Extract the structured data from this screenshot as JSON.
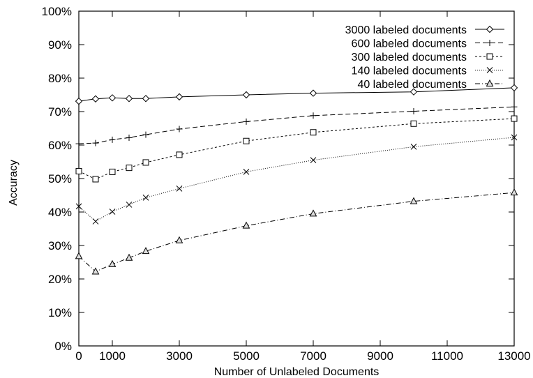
{
  "chart_data": {
    "type": "line",
    "title": "",
    "xlabel": "Number of Unlabeled Documents",
    "ylabel": "Accuracy",
    "xlim": [
      0,
      13000
    ],
    "ylim": [
      0,
      100
    ],
    "x_ticks": [
      0,
      1000,
      3000,
      5000,
      7000,
      9000,
      11000,
      13000
    ],
    "x_tick_labels": [
      "0",
      "1000",
      "3000",
      "5000",
      "7000",
      "9000",
      "11000",
      "13000"
    ],
    "y_ticks": [
      0,
      10,
      20,
      30,
      40,
      50,
      60,
      70,
      80,
      90,
      100
    ],
    "y_tick_labels": [
      "0%",
      "10%",
      "20%",
      "30%",
      "40%",
      "50%",
      "60%",
      "70%",
      "80%",
      "90%",
      "100%"
    ],
    "grid": false,
    "legend_position": "top-right",
    "series": [
      {
        "name": "3000 labeled documents",
        "marker": "diamond",
        "dash": "solid",
        "x": [
          0,
          500,
          1000,
          1500,
          2000,
          3000,
          5000,
          7000,
          10000,
          13000
        ],
        "y": [
          73.1,
          73.8,
          74.1,
          73.9,
          73.9,
          74.4,
          75.0,
          75.5,
          75.9,
          77.1
        ]
      },
      {
        "name": "600 labeled documents",
        "marker": "plus",
        "dash": "dashed",
        "x": [
          0,
          500,
          1000,
          1500,
          2000,
          3000,
          5000,
          7000,
          10000,
          13000
        ],
        "y": [
          60.4,
          60.6,
          61.6,
          62.2,
          63.1,
          64.8,
          67.0,
          68.8,
          70.1,
          71.4
        ]
      },
      {
        "name": "300 labeled documents",
        "marker": "square",
        "dash": "short-dash",
        "x": [
          0,
          500,
          1000,
          1500,
          2000,
          3000,
          5000,
          7000,
          10000,
          13000
        ],
        "y": [
          52.2,
          49.8,
          52.0,
          53.2,
          54.8,
          57.1,
          61.2,
          63.8,
          66.4,
          67.9
        ]
      },
      {
        "name": "140 labeled documents",
        "marker": "cross",
        "dash": "dotted",
        "x": [
          0,
          500,
          1000,
          1500,
          2000,
          3000,
          5000,
          7000,
          10000,
          13000
        ],
        "y": [
          41.7,
          37.2,
          40.1,
          42.2,
          44.3,
          47.0,
          52.0,
          55.5,
          59.5,
          62.3
        ]
      },
      {
        "name": "40 labeled documents",
        "marker": "triangle",
        "dash": "dash-dot",
        "x": [
          0,
          500,
          1000,
          1500,
          2000,
          3000,
          5000,
          7000,
          10000,
          13000
        ],
        "y": [
          26.8,
          22.2,
          24.4,
          26.3,
          28.3,
          31.5,
          35.9,
          39.5,
          43.2,
          45.8
        ]
      }
    ]
  }
}
